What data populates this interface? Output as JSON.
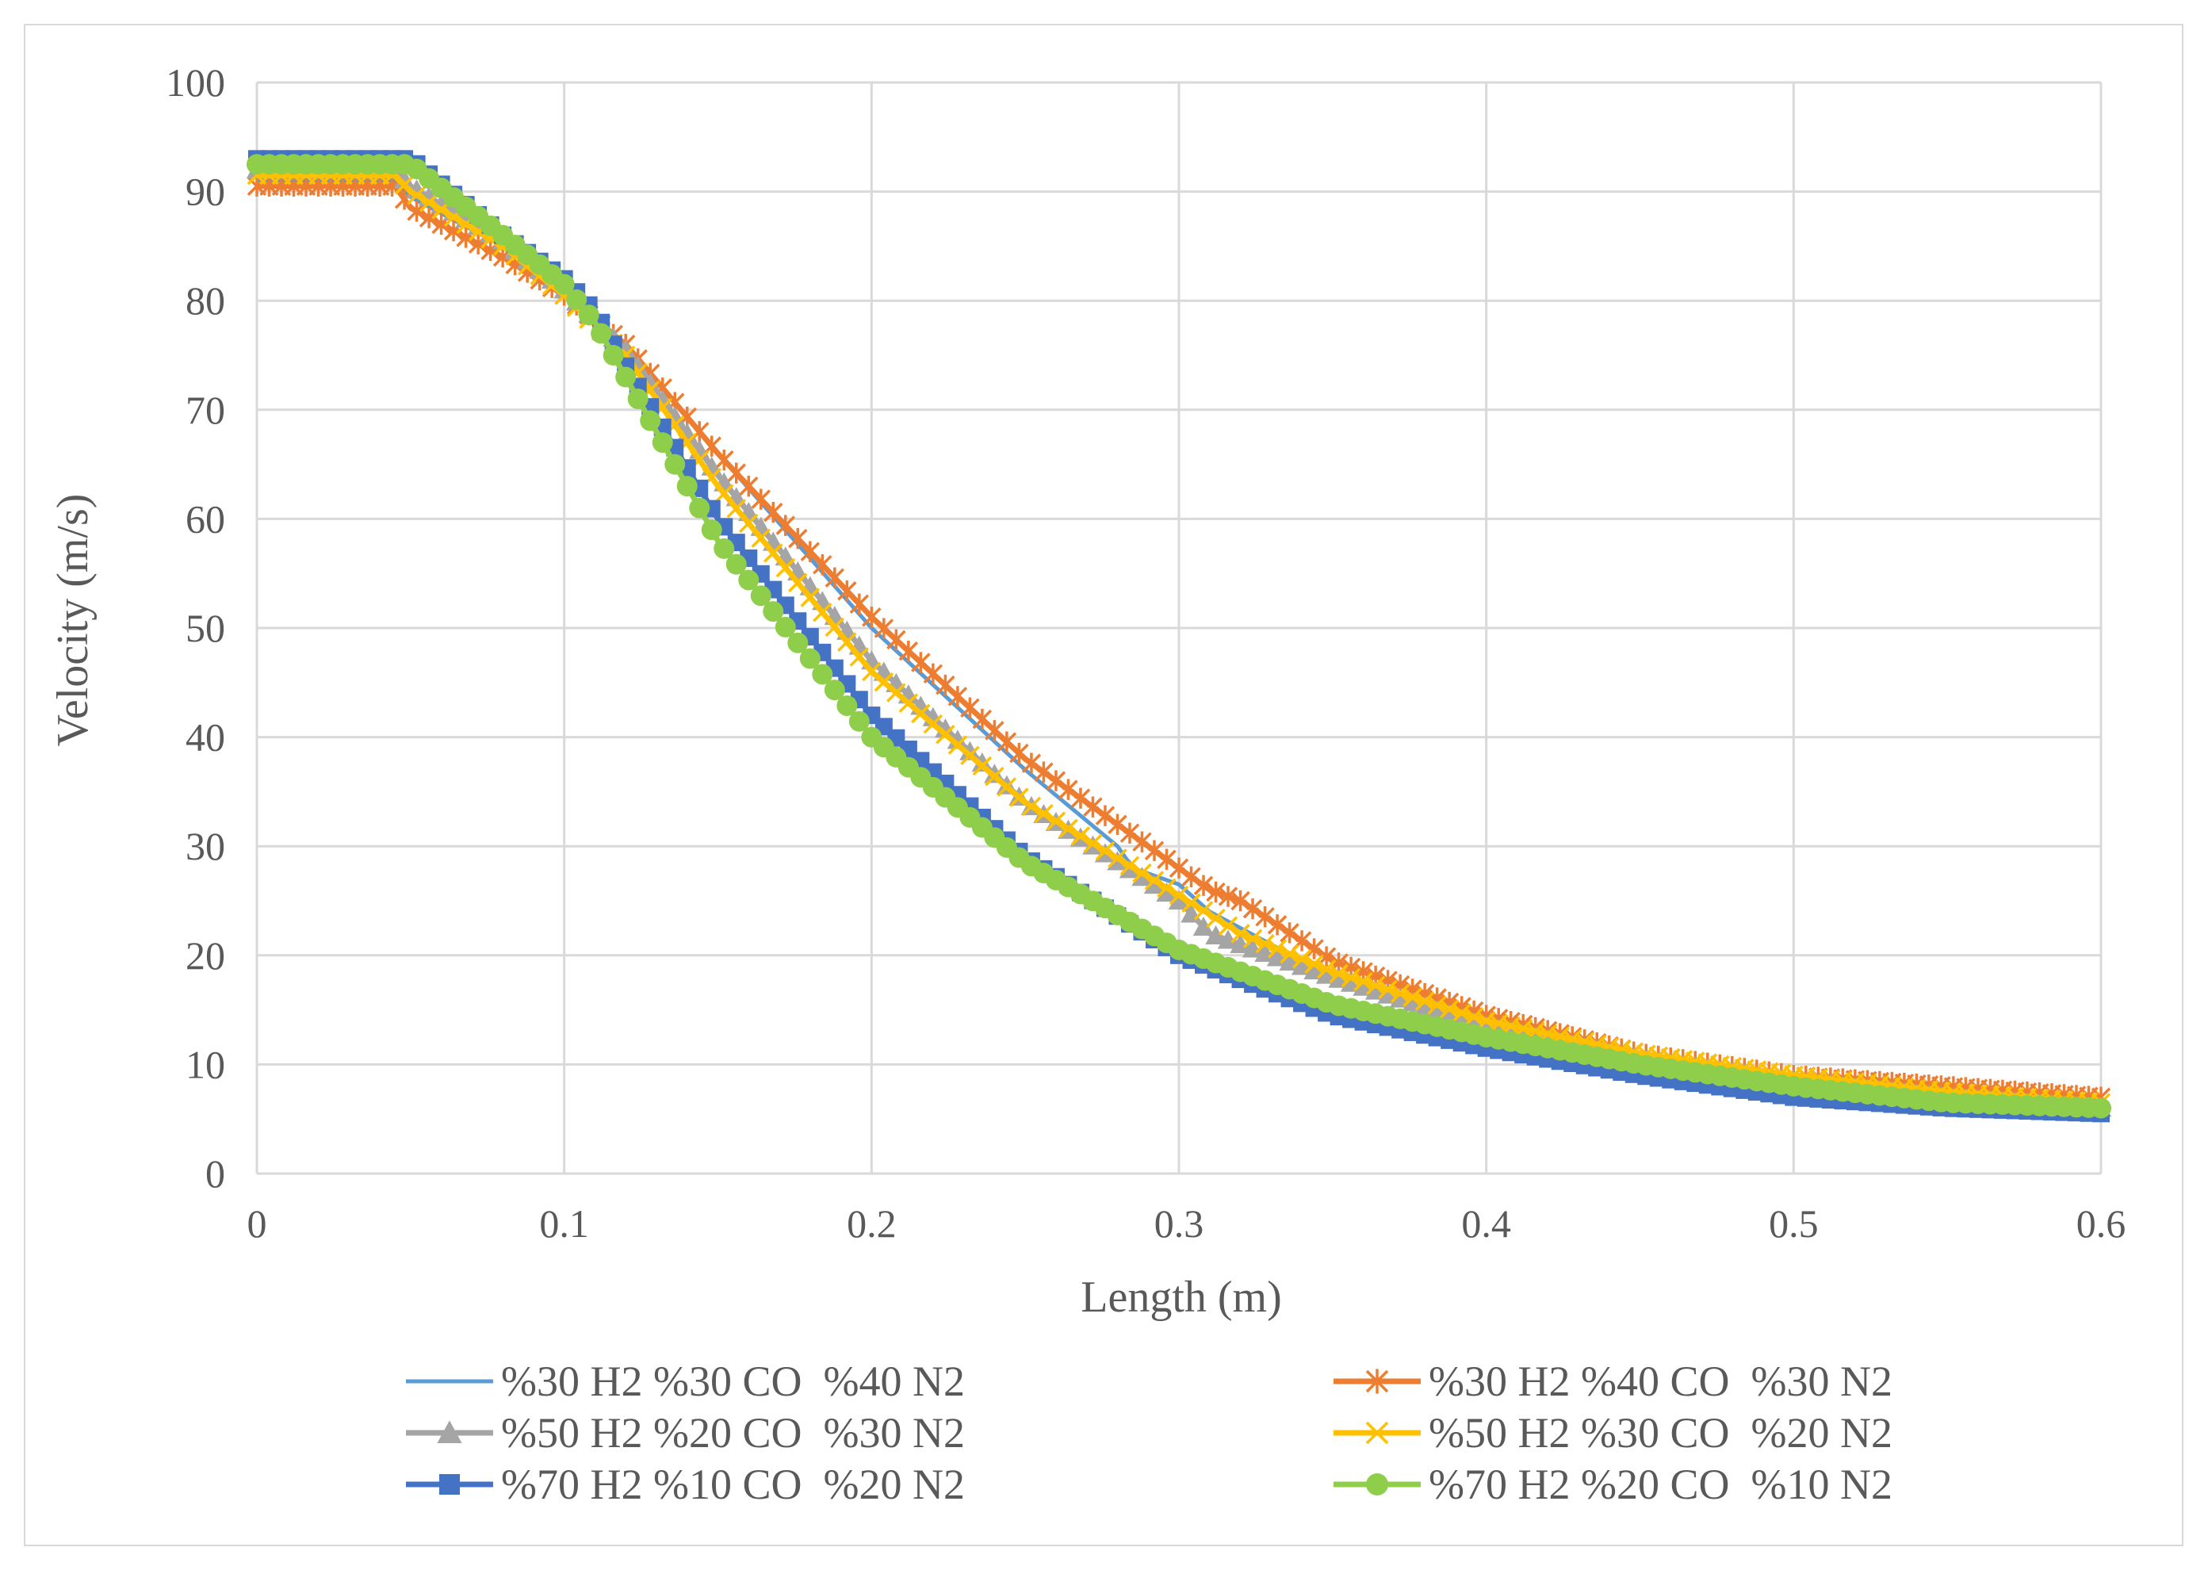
{
  "chart_data": {
    "type": "line",
    "title": "",
    "xlabel": "Length (m)",
    "ylabel": "Velocity (m/s)",
    "xlim": [
      0,
      0.6
    ],
    "ylim": [
      0,
      100
    ],
    "xticks": [
      "0",
      "0.1",
      "0.2",
      "0.3",
      "0.4",
      "0.5",
      "0.6"
    ],
    "yticks": [
      "0",
      "10",
      "20",
      "30",
      "40",
      "50",
      "60",
      "70",
      "80",
      "90",
      "100"
    ],
    "grid": true,
    "legend_position": "bottom",
    "series": [
      {
        "name": "%30 H2 %30 CO  %40 N2",
        "color": "#5b9bd5",
        "marker": "none",
        "x": [
          0,
          0.045,
          0.05,
          0.08,
          0.1,
          0.12,
          0.15,
          0.2,
          0.25,
          0.28,
          0.285,
          0.3,
          0.31,
          0.35,
          0.4,
          0.45,
          0.5,
          0.55,
          0.6
        ],
        "y": [
          91,
          91,
          89.5,
          85,
          81,
          76,
          66,
          50,
          37,
          30,
          28,
          26.5,
          24,
          18,
          13.5,
          10.5,
          8.5,
          7.5,
          6.5
        ]
      },
      {
        "name": "%30 H2 %40 CO  %30 N2",
        "color": "#ed7d31",
        "marker": "asterisk",
        "x": [
          0,
          0.045,
          0.05,
          0.08,
          0.1,
          0.12,
          0.15,
          0.2,
          0.25,
          0.28,
          0.3,
          0.31,
          0.32,
          0.35,
          0.4,
          0.45,
          0.5,
          0.55,
          0.6
        ],
        "y": [
          90.5,
          90.5,
          88.5,
          84,
          80.5,
          76,
          66,
          51,
          38,
          32,
          28,
          26,
          25,
          19.5,
          14.5,
          11,
          9,
          8,
          7
        ]
      },
      {
        "name": "%50 H2 %20 CO  %30 N2",
        "color": "#a5a5a5",
        "marker": "triangle",
        "x": [
          0,
          0.045,
          0.05,
          0.08,
          0.1,
          0.12,
          0.15,
          0.2,
          0.25,
          0.3,
          0.31,
          0.32,
          0.35,
          0.4,
          0.45,
          0.5,
          0.55,
          0.6
        ],
        "y": [
          92,
          92,
          90.5,
          85.5,
          81,
          75.5,
          64,
          47,
          34,
          25,
          22,
          21,
          18,
          13.5,
          10.5,
          8.5,
          7,
          6
        ]
      },
      {
        "name": "%50 H2 %30 CO  %20 N2",
        "color": "#ffc000",
        "marker": "x",
        "x": [
          0,
          0.045,
          0.05,
          0.08,
          0.1,
          0.12,
          0.15,
          0.2,
          0.25,
          0.3,
          0.32,
          0.35,
          0.4,
          0.45,
          0.5,
          0.55,
          0.6
        ],
        "y": [
          91.5,
          91.5,
          90,
          85,
          80.5,
          75,
          63,
          46,
          34,
          25.5,
          22,
          18.5,
          14,
          11,
          9,
          7.5,
          6.5
        ]
      },
      {
        "name": "%70 H2 %10 CO  %20 N2",
        "color": "#4472c4",
        "marker": "square",
        "x": [
          0,
          0.05,
          0.08,
          0.1,
          0.11,
          0.12,
          0.15,
          0.2,
          0.25,
          0.3,
          0.35,
          0.4,
          0.45,
          0.5,
          0.55,
          0.6
        ],
        "y": [
          93,
          93,
          86,
          82,
          79,
          74,
          60,
          42,
          29,
          20,
          14.5,
          11.5,
          9,
          7,
          6,
          5.5
        ]
      },
      {
        "name": "%70 H2 %20 CO  %10 N2",
        "color": "#8fce4a",
        "marker": "circle",
        "x": [
          0,
          0.05,
          0.08,
          0.1,
          0.11,
          0.12,
          0.15,
          0.2,
          0.25,
          0.3,
          0.35,
          0.4,
          0.45,
          0.5,
          0.55,
          0.6
        ],
        "y": [
          92.5,
          92.5,
          86,
          81.5,
          78,
          73,
          58,
          40,
          28.5,
          20.5,
          15.5,
          12.5,
          10,
          8,
          6.5,
          6
        ]
      }
    ]
  }
}
